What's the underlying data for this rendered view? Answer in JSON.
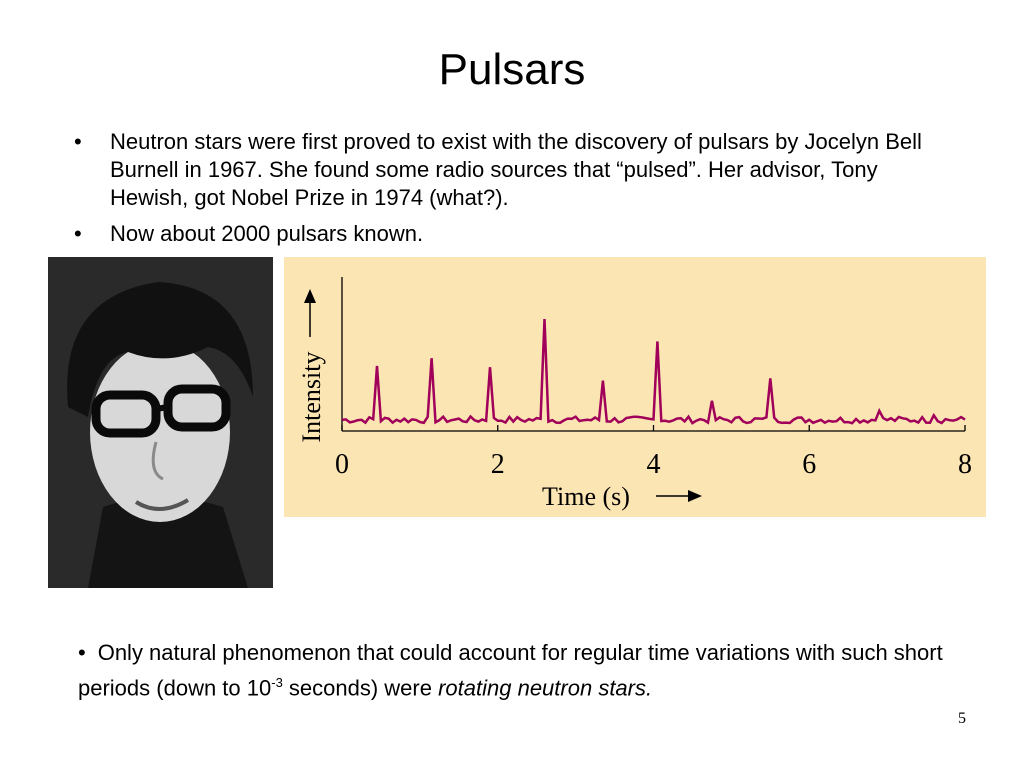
{
  "title": "Pulsars",
  "bullets": [
    "Neutron stars were first proved to exist with the discovery of pulsars by Jocelyn Bell Burnell in 1967.  She found some radio sources that “pulsed”.  Her advisor, Tony Hewish, got Nobel Prize in 1974 (what?).",
    "Now about 2000 pulsars known."
  ],
  "bullet_char": "•",
  "bottom": {
    "prefix": "Only natural phenomenon that could account for regular time variations with such short periods (down to 10",
    "exponent": "-3",
    "middle": " seconds) were ",
    "emphasis": "rotating neutron stars."
  },
  "page_number": "5",
  "colors": {
    "chart_bg": "#fbe5b3",
    "signal": "#a0005a"
  },
  "chart_data": {
    "type": "line",
    "title": "",
    "xlabel": "Time (s)",
    "ylabel": "Intensity",
    "xlim": [
      0,
      8
    ],
    "x_ticks": [
      "0",
      "2",
      "4",
      "6",
      "8"
    ],
    "y_ticks": [],
    "grid": false,
    "series": [
      {
        "name": "",
        "baseline": 0.1,
        "pulses": [
          {
            "x": 0.45,
            "y": 0.58
          },
          {
            "x": 1.17,
            "y": 0.65
          },
          {
            "x": 1.89,
            "y": 0.57
          },
          {
            "x": 2.61,
            "y": 1.0
          },
          {
            "x": 3.33,
            "y": 0.45
          },
          {
            "x": 4.05,
            "y": 0.8
          },
          {
            "x": 4.77,
            "y": 0.27
          },
          {
            "x": 5.49,
            "y": 0.47
          },
          {
            "x": 6.9,
            "y": 0.18
          },
          {
            "x": 7.6,
            "y": 0.14
          }
        ]
      }
    ]
  }
}
